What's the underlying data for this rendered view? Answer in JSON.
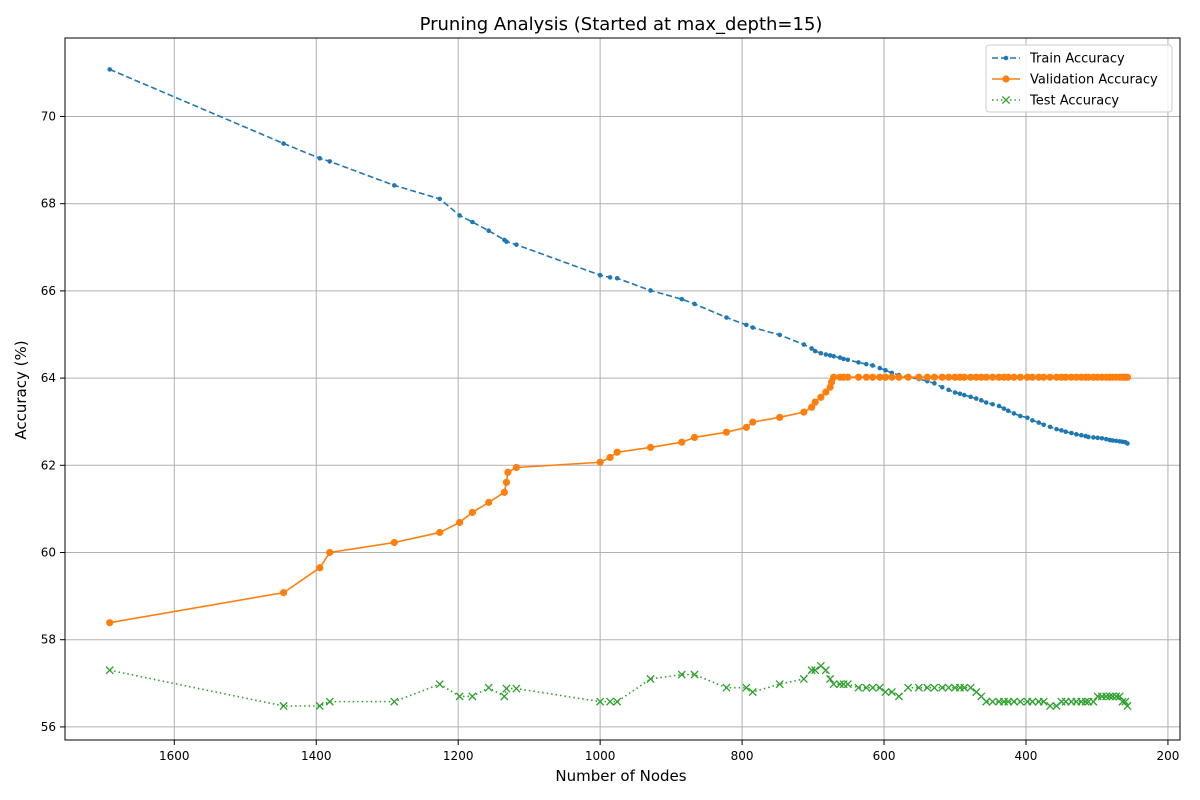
{
  "chart_data": {
    "type": "line",
    "title": "Pruning Analysis (Started at max_depth=15)",
    "xlabel": "Number of Nodes",
    "ylabel": "Accuracy (%)",
    "xlim": [
      1754,
      183
    ],
    "ylim": [
      55.7,
      71.8
    ],
    "x_inverted": true,
    "grid": true,
    "legend_position": "top-right",
    "xticks": [
      1600,
      1400,
      1200,
      1000,
      800,
      600,
      400,
      200
    ],
    "yticks": [
      56,
      58,
      60,
      62,
      64,
      66,
      68,
      70
    ],
    "series": [
      {
        "name": "Train Accuracy",
        "color": "#1f77b4",
        "linestyle": "dashed",
        "marker": "dot",
        "x": [
          1691,
          1446,
          1395,
          1381,
          1290,
          1226,
          1198,
          1180,
          1157,
          1135,
          1132,
          1118,
          1000,
          986,
          976,
          929,
          885,
          867,
          822,
          794,
          785,
          747,
          713,
          702,
          697,
          689,
          682,
          676,
          671,
          662,
          657,
          651,
          636,
          625,
          616,
          606,
          598,
          589,
          579,
          566,
          551,
          539,
          529,
          518,
          509,
          500,
          493,
          487,
          478,
          470,
          463,
          456,
          447,
          438,
          431,
          425,
          417,
          408,
          398,
          391,
          382,
          375,
          366,
          357,
          350,
          344,
          336,
          329,
          322,
          316,
          312,
          305,
          299,
          293,
          287,
          282,
          278,
          273,
          268,
          264,
          260,
          257
        ],
        "y": [
          71.08,
          69.38,
          69.04,
          68.97,
          68.42,
          68.11,
          67.73,
          67.58,
          67.38,
          67.17,
          67.13,
          67.06,
          66.36,
          66.31,
          66.29,
          66.01,
          65.81,
          65.7,
          65.39,
          65.22,
          65.16,
          64.99,
          64.77,
          64.68,
          64.62,
          64.57,
          64.54,
          64.52,
          64.5,
          64.47,
          64.44,
          64.42,
          64.36,
          64.32,
          64.29,
          64.23,
          64.18,
          64.12,
          64.07,
          64.02,
          63.98,
          63.93,
          63.88,
          63.79,
          63.73,
          63.67,
          63.64,
          63.61,
          63.57,
          63.53,
          63.49,
          63.44,
          63.4,
          63.36,
          63.3,
          63.25,
          63.19,
          63.13,
          63.09,
          63.03,
          62.98,
          62.93,
          62.88,
          62.83,
          62.8,
          62.77,
          62.74,
          62.71,
          62.69,
          62.67,
          62.65,
          62.64,
          62.63,
          62.62,
          62.6,
          62.58,
          62.57,
          62.56,
          62.55,
          62.54,
          62.53,
          62.5
        ]
      },
      {
        "name": "Validation Accuracy",
        "color": "#ff7f0e",
        "linestyle": "solid",
        "marker": "circle",
        "x": [
          1691,
          1446,
          1395,
          1381,
          1290,
          1226,
          1198,
          1180,
          1157,
          1135,
          1132,
          1130,
          1118,
          1000,
          986,
          976,
          929,
          885,
          867,
          822,
          794,
          785,
          747,
          713,
          702,
          697,
          689,
          682,
          676,
          674,
          671,
          662,
          657,
          651,
          636,
          625,
          616,
          606,
          598,
          589,
          579,
          566,
          551,
          539,
          529,
          518,
          509,
          500,
          493,
          487,
          478,
          470,
          463,
          456,
          447,
          438,
          431,
          425,
          417,
          408,
          398,
          391,
          382,
          375,
          366,
          357,
          350,
          344,
          336,
          329,
          322,
          316,
          312,
          305,
          299,
          293,
          287,
          282,
          278,
          273,
          268,
          264,
          260,
          257
        ],
        "y": [
          58.39,
          59.08,
          59.65,
          60.0,
          60.23,
          60.46,
          60.69,
          60.92,
          61.15,
          61.38,
          61.61,
          61.84,
          61.95,
          62.07,
          62.18,
          62.3,
          62.41,
          62.53,
          62.64,
          62.76,
          62.87,
          62.99,
          63.1,
          63.22,
          63.33,
          63.45,
          63.56,
          63.68,
          63.79,
          63.91,
          64.02,
          64.02,
          64.02,
          64.02,
          64.02,
          64.02,
          64.02,
          64.02,
          64.02,
          64.02,
          64.02,
          64.02,
          64.02,
          64.02,
          64.02,
          64.02,
          64.02,
          64.02,
          64.02,
          64.02,
          64.02,
          64.02,
          64.02,
          64.02,
          64.02,
          64.02,
          64.02,
          64.02,
          64.02,
          64.02,
          64.02,
          64.02,
          64.02,
          64.02,
          64.02,
          64.02,
          64.02,
          64.02,
          64.02,
          64.02,
          64.02,
          64.02,
          64.02,
          64.02,
          64.02,
          64.02,
          64.02,
          64.02,
          64.02,
          64.02,
          64.02,
          64.02,
          64.02,
          64.02
        ]
      },
      {
        "name": "Test Accuracy",
        "color": "#2ca02c",
        "linestyle": "dotted",
        "marker": "x",
        "x": [
          1691,
          1446,
          1395,
          1381,
          1290,
          1226,
          1198,
          1180,
          1157,
          1135,
          1132,
          1118,
          1000,
          986,
          976,
          929,
          885,
          867,
          822,
          794,
          785,
          747,
          713,
          702,
          697,
          689,
          682,
          676,
          671,
          662,
          657,
          651,
          636,
          625,
          616,
          606,
          598,
          589,
          579,
          566,
          551,
          539,
          529,
          518,
          509,
          500,
          493,
          487,
          478,
          470,
          463,
          456,
          447,
          438,
          431,
          425,
          417,
          408,
          398,
          391,
          382,
          375,
          366,
          357,
          350,
          344,
          336,
          329,
          322,
          316,
          312,
          305,
          299,
          293,
          287,
          282,
          278,
          273,
          268,
          264,
          260,
          257
        ],
        "y": [
          57.3,
          56.48,
          56.48,
          56.58,
          56.58,
          56.98,
          56.7,
          56.7,
          56.9,
          56.7,
          56.88,
          56.88,
          56.58,
          56.58,
          56.58,
          57.1,
          57.2,
          57.2,
          56.9,
          56.9,
          56.8,
          56.98,
          57.1,
          57.3,
          57.3,
          57.4,
          57.3,
          57.1,
          56.98,
          56.98,
          56.98,
          56.98,
          56.9,
          56.9,
          56.9,
          56.9,
          56.8,
          56.8,
          56.7,
          56.9,
          56.9,
          56.9,
          56.9,
          56.9,
          56.9,
          56.9,
          56.9,
          56.9,
          56.9,
          56.8,
          56.7,
          56.58,
          56.58,
          56.58,
          56.58,
          56.58,
          56.58,
          56.58,
          56.58,
          56.58,
          56.58,
          56.58,
          56.48,
          56.48,
          56.58,
          56.58,
          56.58,
          56.58,
          56.58,
          56.58,
          56.58,
          56.58,
          56.7,
          56.7,
          56.7,
          56.7,
          56.7,
          56.7,
          56.7,
          56.58,
          56.58,
          56.48
        ]
      }
    ]
  }
}
